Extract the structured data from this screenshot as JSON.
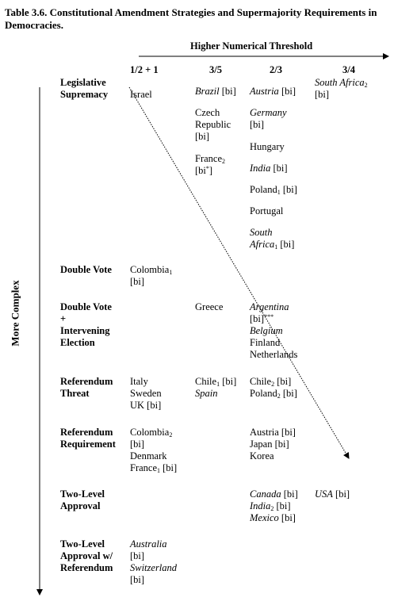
{
  "title": {
    "line1": "Table 3.6. Constitutional Amendment Strategies and Supermajority Requirements in",
    "line2": "Democracies."
  },
  "axis": {
    "horizontal_label": "Higher Numerical Threshold",
    "vertical_label": "More Complex"
  },
  "columns": [
    "1/2  + 1",
    "3/5",
    "2/3",
    "3/4"
  ],
  "rows": {
    "legislative_supremacy": {
      "label_l1": "Legislative",
      "label_l2": "Supremacy",
      "c1": "Israel",
      "c2_brazil": "Brazil",
      "c2_brazil_bi": " [bi]",
      "c2_czech_l1": "Czech",
      "c2_czech_l2": "Republic",
      "c2_czech_l3": "[bi]",
      "c2_france": "France",
      "c2_france_sub": "2",
      "c2_france_bi": "[bi",
      "c2_france_sup": "*",
      "c2_france_close": "]",
      "c3_austria": "Austria",
      "c3_austria_bi": " [bi]",
      "c3_germany": "Germany",
      "c3_germany_bi": "[bi]",
      "c3_hungary": "Hungary",
      "c3_india": "India",
      "c3_india_bi": " [bi]",
      "c3_poland": "Poland",
      "c3_poland_sub": "1",
      "c3_poland_bi": " [bi]",
      "c3_portugal": "Portugal",
      "c3_sa_l1": "South",
      "c3_sa_l2": "Africa",
      "c3_sa_sub": "1",
      "c3_sa_bi": " [bi]",
      "c4_sa": "South Africa",
      "c4_sa_sub": "2",
      "c4_sa_bi": "[bi]"
    },
    "double_vote": {
      "label": "Double Vote",
      "c1_l1": "Colombia",
      "c1_sub": "1",
      "c1_l2": "[bi]"
    },
    "double_vote_election": {
      "label_l1": "Double Vote",
      "label_l2": "+",
      "label_l3": "Intervening",
      "label_l4": "Election",
      "c2": "Greece",
      "c3_argentina": "Argentina",
      "c3_argentina_bi": "[bi]",
      "c3_argentina_sup": "***",
      "c3_belgium": "Belgium",
      "c3_finland": "Finland",
      "c3_netherlands": "Netherlands"
    },
    "referendum_threat": {
      "label_l1": "Referendum",
      "label_l2": "Threat",
      "c1_l1": "Italy",
      "c1_l2": "Sweden",
      "c1_l3": "UK [bi]",
      "c2_chile": "Chile",
      "c2_chile_sub": "1",
      "c2_chile_bi": " [bi]",
      "c2_spain": "Spain",
      "c3_chile": "Chile",
      "c3_chile_sub": "2",
      "c3_chile_bi": " [bi]",
      "c3_poland": "Poland",
      "c3_poland_sub": "2",
      "c3_poland_bi": " [bi]"
    },
    "referendum_requirement": {
      "label_l1": "Referendum",
      "label_l2": "Requirement",
      "c1_colombia": "Colombia",
      "c1_colombia_sub": "2",
      "c1_colombia_bi": "[bi]",
      "c1_denmark": "Denmark",
      "c1_france": "France",
      "c1_france_sub": "1",
      "c1_france_bi": " [bi]",
      "c3_l1": "Austria [bi]",
      "c3_l2": "Japan [bi]",
      "c3_l3": "Korea"
    },
    "two_level_approval": {
      "label_l1": "Two-Level",
      "label_l2": "Approval",
      "c3_canada": "Canada",
      "c3_canada_bi": " [bi]",
      "c3_india": "India",
      "c3_india_sub": "2",
      "c3_india_bi": " [bi]",
      "c3_mexico": "Mexico",
      "c3_mexico_bi": " [bi]",
      "c4_usa": "USA",
      "c4_usa_bi": " [bi]"
    },
    "two_level_referendum": {
      "label_l1": "Two-Level",
      "label_l2": "Approval w/",
      "label_l3": "Referendum",
      "c1_australia": "Australia",
      "c1_australia_bi": "[bi]",
      "c1_switzerland": "Switzerland",
      "c1_switzerland_bi": "[bi]"
    }
  }
}
